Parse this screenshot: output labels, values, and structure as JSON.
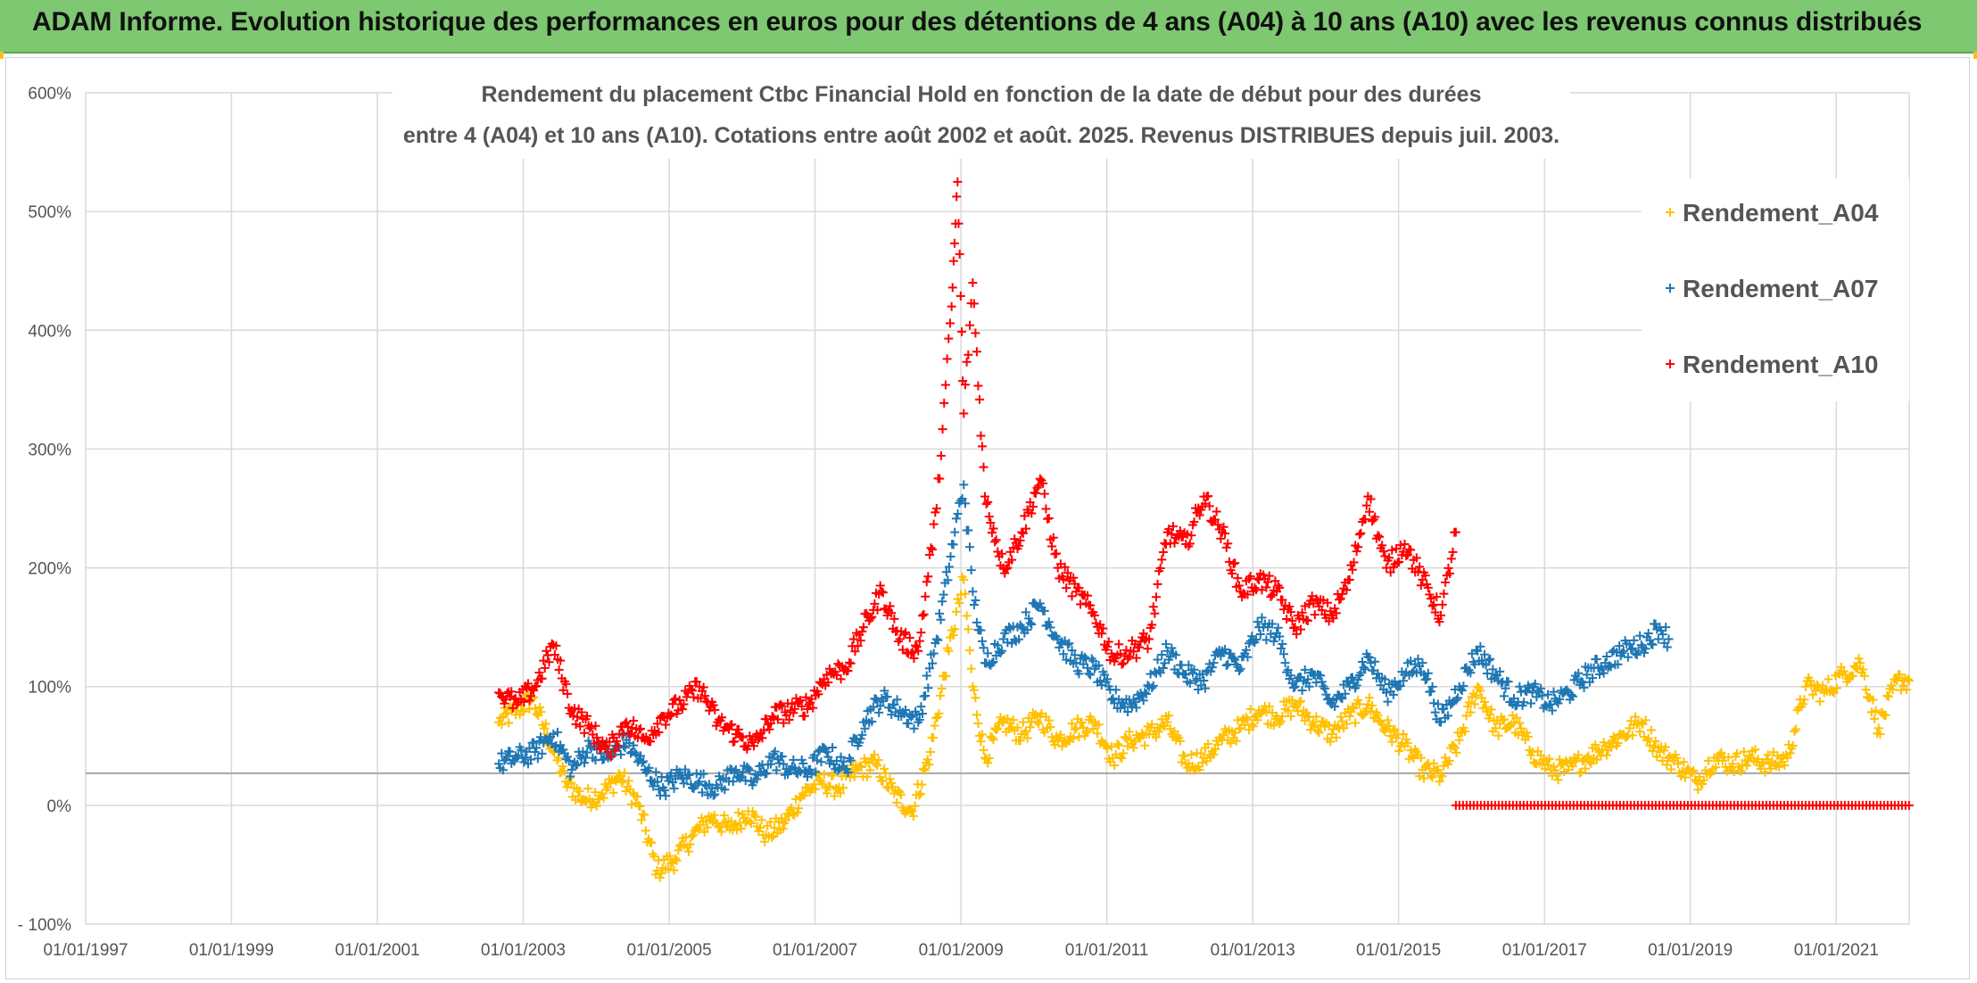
{
  "banner": {
    "title": "ADAM Informe. Evolution historique des performances en euros pour des détentions de 4 ans (A04) à 10 ans (A10) avec les revenus connus distribués"
  },
  "chart_data": {
    "type": "scatter",
    "title_lines": [
      "Rendement du placement Ctbc Financial Hold  en fonction de la date de début pour des durées",
      "entre 4 (A04) et 10 ans (A10). Cotations entre août 2002 et août. 2025. Revenus DISTRIBUES depuis juil. 2003."
    ],
    "xlabel": "",
    "ylabel": "",
    "x_tick_labels": [
      "01/01/1997",
      "01/01/1999",
      "01/01/2001",
      "01/01/2003",
      "01/01/2005",
      "01/01/2007",
      "01/01/2009",
      "01/01/2011",
      "01/01/2013",
      "01/01/2015",
      "01/01/2017",
      "01/01/2019",
      "01/01/2021"
    ],
    "y_tick_labels": [
      "- 100%",
      "0%",
      "100%",
      "200%",
      "300%",
      "400%",
      "500%",
      "600%"
    ],
    "xlim": [
      "1997-01-01",
      "2022-01-01"
    ],
    "ylim": [
      -100,
      600
    ],
    "reference_line_y": 27,
    "grid": true,
    "legend_position": "top-right",
    "marker": "+",
    "series": [
      {
        "name": "Rendement_A04",
        "color": "#ffc000",
        "points": [
          [
            "2002-09-01",
            70
          ],
          [
            "2002-12-01",
            80
          ],
          [
            "2003-02-15",
            90
          ],
          [
            "2003-05-01",
            60
          ],
          [
            "2003-08-01",
            20
          ],
          [
            "2003-11-01",
            5
          ],
          [
            "2004-02-01",
            10
          ],
          [
            "2004-05-01",
            25
          ],
          [
            "2004-08-01",
            0
          ],
          [
            "2004-11-01",
            -55
          ],
          [
            "2005-02-01",
            -45
          ],
          [
            "2005-05-01",
            -25
          ],
          [
            "2005-08-01",
            -10
          ],
          [
            "2005-11-01",
            -20
          ],
          [
            "2006-02-01",
            -5
          ],
          [
            "2006-05-01",
            -25
          ],
          [
            "2006-08-01",
            -15
          ],
          [
            "2006-11-01",
            10
          ],
          [
            "2007-02-01",
            20
          ],
          [
            "2007-05-01",
            15
          ],
          [
            "2007-08-01",
            30
          ],
          [
            "2007-11-01",
            35
          ],
          [
            "2008-02-01",
            10
          ],
          [
            "2008-05-01",
            -5
          ],
          [
            "2008-08-01",
            45
          ],
          [
            "2008-11-01",
            130
          ],
          [
            "2009-01-15",
            190
          ],
          [
            "2009-03-01",
            100
          ],
          [
            "2009-05-01",
            40
          ],
          [
            "2009-08-01",
            70
          ],
          [
            "2009-11-01",
            60
          ],
          [
            "2010-02-01",
            75
          ],
          [
            "2010-05-01",
            55
          ],
          [
            "2010-08-01",
            65
          ],
          [
            "2010-11-01",
            70
          ],
          [
            "2011-02-01",
            40
          ],
          [
            "2011-05-01",
            55
          ],
          [
            "2011-08-01",
            60
          ],
          [
            "2011-11-01",
            70
          ],
          [
            "2012-02-01",
            35
          ],
          [
            "2012-05-01",
            40
          ],
          [
            "2012-08-01",
            55
          ],
          [
            "2012-11-01",
            65
          ],
          [
            "2013-02-01",
            80
          ],
          [
            "2013-05-01",
            75
          ],
          [
            "2013-08-01",
            85
          ],
          [
            "2013-11-01",
            70
          ],
          [
            "2014-02-01",
            60
          ],
          [
            "2014-05-01",
            75
          ],
          [
            "2014-08-01",
            85
          ],
          [
            "2014-11-01",
            65
          ],
          [
            "2015-02-01",
            50
          ],
          [
            "2015-05-01",
            30
          ],
          [
            "2015-08-01",
            25
          ],
          [
            "2015-11-01",
            55
          ],
          [
            "2016-02-01",
            100
          ],
          [
            "2016-05-01",
            65
          ],
          [
            "2016-08-01",
            70
          ],
          [
            "2016-11-01",
            45
          ],
          [
            "2017-02-01",
            30
          ],
          [
            "2017-05-01",
            30
          ],
          [
            "2017-08-01",
            40
          ],
          [
            "2017-11-01",
            50
          ],
          [
            "2018-02-01",
            60
          ],
          [
            "2018-05-01",
            70
          ],
          [
            "2018-08-01",
            45
          ],
          [
            "2018-11-01",
            35
          ],
          [
            "2019-02-01",
            20
          ],
          [
            "2019-05-01",
            40
          ],
          [
            "2019-08-01",
            35
          ],
          [
            "2019-11-01",
            40
          ],
          [
            "2020-02-01",
            35
          ],
          [
            "2020-05-01",
            40
          ],
          [
            "2020-08-01",
            100
          ],
          [
            "2020-11-01",
            95
          ],
          [
            "2021-02-01",
            110
          ],
          [
            "2021-05-01",
            120
          ],
          [
            "2021-08-01",
            65
          ],
          [
            "2021-11-01",
            105
          ],
          [
            "2022-01-01",
            105
          ]
        ]
      },
      {
        "name": "Rendement_A07",
        "color": "#1f77b4",
        "points": [
          [
            "2002-09-01",
            35
          ],
          [
            "2002-12-01",
            40
          ],
          [
            "2003-03-01",
            45
          ],
          [
            "2003-06-01",
            60
          ],
          [
            "2003-09-01",
            30
          ],
          [
            "2003-12-01",
            50
          ],
          [
            "2004-03-01",
            40
          ],
          [
            "2004-06-01",
            55
          ],
          [
            "2004-09-01",
            30
          ],
          [
            "2004-12-01",
            15
          ],
          [
            "2005-03-01",
            25
          ],
          [
            "2005-06-01",
            20
          ],
          [
            "2005-09-01",
            15
          ],
          [
            "2005-12-01",
            30
          ],
          [
            "2006-03-01",
            20
          ],
          [
            "2006-06-01",
            40
          ],
          [
            "2006-09-01",
            30
          ],
          [
            "2006-12-01",
            30
          ],
          [
            "2007-03-01",
            45
          ],
          [
            "2007-06-01",
            30
          ],
          [
            "2007-09-01",
            70
          ],
          [
            "2007-12-01",
            90
          ],
          [
            "2008-03-01",
            80
          ],
          [
            "2008-06-01",
            70
          ],
          [
            "2008-09-01",
            140
          ],
          [
            "2008-12-01",
            230
          ],
          [
            "2009-01-15",
            270
          ],
          [
            "2009-03-01",
            180
          ],
          [
            "2009-05-01",
            120
          ],
          [
            "2009-08-01",
            140
          ],
          [
            "2009-11-01",
            150
          ],
          [
            "2010-02-01",
            170
          ],
          [
            "2010-05-01",
            140
          ],
          [
            "2010-08-01",
            120
          ],
          [
            "2010-11-01",
            115
          ],
          [
            "2011-02-01",
            90
          ],
          [
            "2011-05-01",
            85
          ],
          [
            "2011-08-01",
            100
          ],
          [
            "2011-11-01",
            130
          ],
          [
            "2012-02-01",
            110
          ],
          [
            "2012-05-01",
            105
          ],
          [
            "2012-08-01",
            130
          ],
          [
            "2012-11-01",
            115
          ],
          [
            "2013-02-01",
            150
          ],
          [
            "2013-05-01",
            145
          ],
          [
            "2013-08-01",
            100
          ],
          [
            "2013-11-01",
            110
          ],
          [
            "2014-02-01",
            85
          ],
          [
            "2014-05-01",
            100
          ],
          [
            "2014-08-01",
            125
          ],
          [
            "2014-11-01",
            95
          ],
          [
            "2015-02-01",
            110
          ],
          [
            "2015-05-01",
            120
          ],
          [
            "2015-08-01",
            70
          ],
          [
            "2015-11-01",
            100
          ],
          [
            "2016-02-01",
            130
          ],
          [
            "2016-05-01",
            110
          ],
          [
            "2016-08-01",
            90
          ],
          [
            "2016-11-01",
            95
          ],
          [
            "2017-02-01",
            85
          ],
          [
            "2017-05-01",
            95
          ],
          [
            "2017-08-01",
            110
          ],
          [
            "2017-11-01",
            120
          ],
          [
            "2018-02-01",
            130
          ],
          [
            "2018-05-01",
            135
          ],
          [
            "2018-08-01",
            150
          ],
          [
            "2018-09-15",
            140
          ]
        ]
      },
      {
        "name": "Rendement_A10",
        "color": "#ff0000",
        "points": [
          [
            "2002-09-01",
            95
          ],
          [
            "2002-12-01",
            85
          ],
          [
            "2003-03-01",
            100
          ],
          [
            "2003-06-01",
            135
          ],
          [
            "2003-09-01",
            80
          ],
          [
            "2003-12-01",
            65
          ],
          [
            "2004-03-01",
            45
          ],
          [
            "2004-06-01",
            70
          ],
          [
            "2004-09-01",
            55
          ],
          [
            "2004-12-01",
            75
          ],
          [
            "2005-03-01",
            85
          ],
          [
            "2005-06-01",
            100
          ],
          [
            "2005-09-01",
            70
          ],
          [
            "2005-12-01",
            60
          ],
          [
            "2006-03-01",
            50
          ],
          [
            "2006-06-01",
            75
          ],
          [
            "2006-09-01",
            80
          ],
          [
            "2006-12-01",
            85
          ],
          [
            "2007-03-01",
            110
          ],
          [
            "2007-06-01",
            115
          ],
          [
            "2007-09-01",
            150
          ],
          [
            "2007-12-01",
            180
          ],
          [
            "2008-03-01",
            140
          ],
          [
            "2008-06-01",
            130
          ],
          [
            "2008-09-01",
            250
          ],
          [
            "2008-11-15",
            420
          ],
          [
            "2008-12-15",
            525
          ],
          [
            "2009-01-15",
            330
          ],
          [
            "2009-03-01",
            440
          ],
          [
            "2009-05-01",
            260
          ],
          [
            "2009-08-01",
            200
          ],
          [
            "2009-11-01",
            230
          ],
          [
            "2010-02-01",
            275
          ],
          [
            "2010-05-01",
            200
          ],
          [
            "2010-08-01",
            180
          ],
          [
            "2010-11-01",
            160
          ],
          [
            "2011-02-01",
            125
          ],
          [
            "2011-05-01",
            130
          ],
          [
            "2011-08-01",
            140
          ],
          [
            "2011-11-01",
            230
          ],
          [
            "2012-02-01",
            220
          ],
          [
            "2012-05-01",
            260
          ],
          [
            "2012-08-01",
            230
          ],
          [
            "2012-11-01",
            180
          ],
          [
            "2013-02-01",
            190
          ],
          [
            "2013-05-01",
            180
          ],
          [
            "2013-08-01",
            150
          ],
          [
            "2013-11-01",
            170
          ],
          [
            "2014-02-01",
            160
          ],
          [
            "2014-05-01",
            190
          ],
          [
            "2014-08-01",
            260
          ],
          [
            "2014-11-01",
            200
          ],
          [
            "2015-02-01",
            220
          ],
          [
            "2015-05-01",
            190
          ],
          [
            "2015-08-01",
            160
          ],
          [
            "2015-10-15",
            230
          ]
        ],
        "flat_segment": {
          "from": "2015-10-15",
          "to": "2022-01-01",
          "y": 0
        }
      }
    ]
  }
}
